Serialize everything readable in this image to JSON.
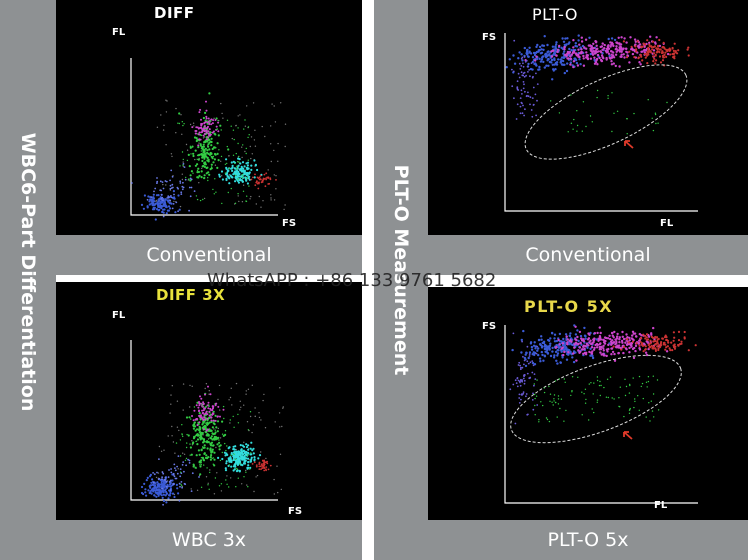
{
  "side_labels": {
    "left": "WBC6-Part Differentiation",
    "right": "PLT-O Measurement"
  },
  "panels": [
    {
      "title": "DIFF",
      "title_color": "#ffffff",
      "caption": "Conventional",
      "y_axis": "FL",
      "x_axis": "FS"
    },
    {
      "title": "PLT-O",
      "title_color": "#ffffff",
      "caption": "Conventional",
      "y_axis": "FS",
      "x_axis": "FL"
    },
    {
      "title": "DIFF 3X",
      "title_color": "#e8e23c",
      "caption": "WBC 3x",
      "y_axis": "FL",
      "x_axis": "FS"
    },
    {
      "title": "PLT-O 5X",
      "title_color": "#e8d84a",
      "caption": "PLT-O 5x",
      "y_axis": "FS",
      "x_axis": "FL"
    }
  ],
  "watermark": "WhatsAPP : +86 133 9761 5682",
  "colors": {
    "gray": "#8e9193",
    "blue": "#3b5bd6",
    "green": "#33cc44",
    "magenta": "#cc44cc",
    "cyan": "#33dddd",
    "red": "#cc3333",
    "arrow": "#e03a2a"
  }
}
